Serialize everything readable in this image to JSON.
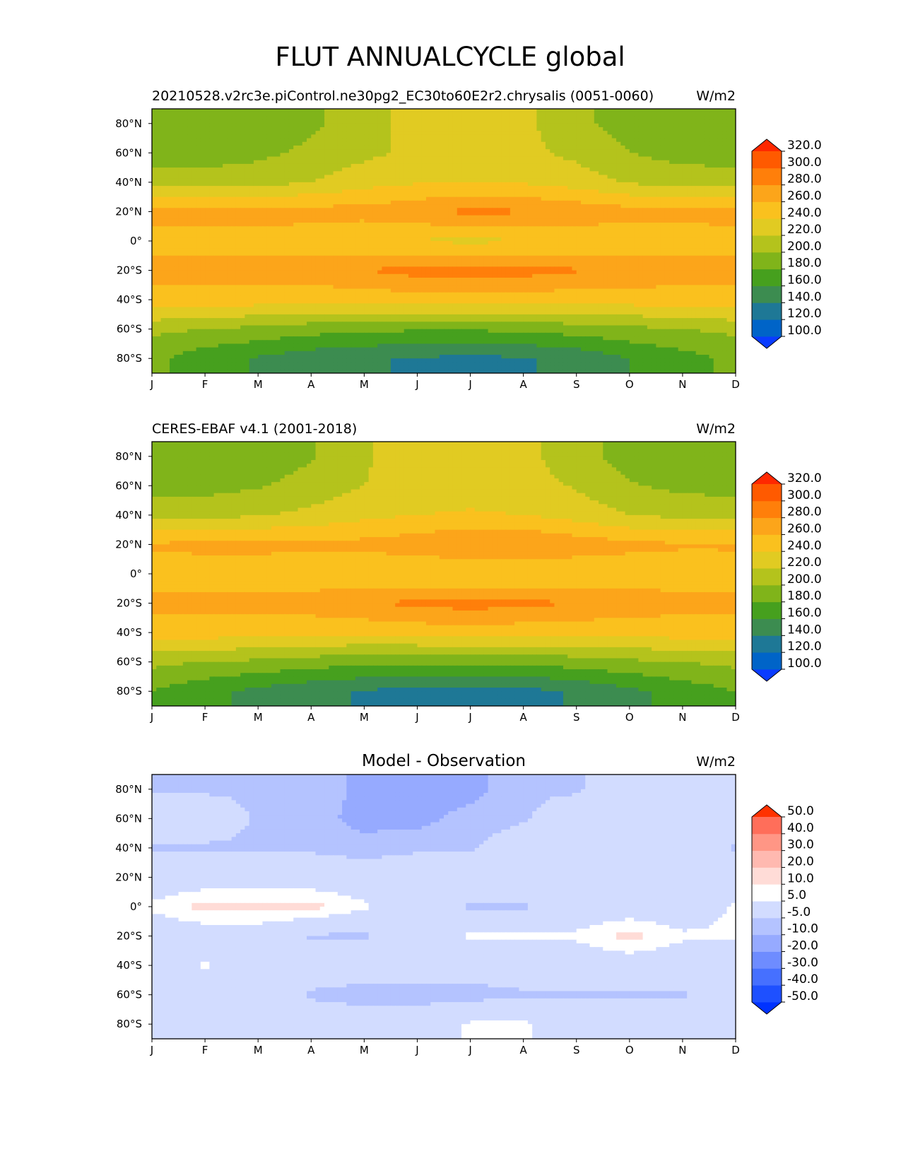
{
  "figure_title": "FLUT ANNUALCYCLE global",
  "chart_data": [
    {
      "type": "heatmap",
      "subtype": "filled-contour",
      "title": "20210528.v2rc3e.piControl.ne30pg2_EC30to60E2r2.chrysalis (0051-0060)",
      "units": "W/m2",
      "x": [
        "J",
        "F",
        "M",
        "A",
        "M",
        "J",
        "J",
        "A",
        "S",
        "O",
        "N",
        "D"
      ],
      "y": [
        "80°N",
        "60°N",
        "40°N",
        "20°N",
        "0°",
        "20°S",
        "40°S",
        "60°S",
        "80°S"
      ],
      "y_values": [
        80,
        60,
        40,
        20,
        0,
        -20,
        -40,
        -60,
        -80
      ],
      "ylim": [
        -90,
        90
      ],
      "levels": [
        100,
        120,
        140,
        160,
        180,
        200,
        220,
        240,
        260,
        280,
        300,
        320
      ],
      "level_labels": [
        "100.0",
        "120.0",
        "140.0",
        "160.0",
        "180.0",
        "200.0",
        "220.0",
        "240.0",
        "260.0",
        "280.0",
        "300.0",
        "320.0"
      ],
      "colors": [
        "#0a3cff",
        "#0064c8",
        "#1e7896",
        "#3c8c50",
        "#46a01e",
        "#80b41a",
        "#b4c31c",
        "#e1cb22",
        "#fac11e",
        "#fca51a",
        "#ff7f0a",
        "#ff5a00",
        "#ff2800"
      ],
      "values": [
        [
          180,
          180,
          185,
          195,
          215,
          225,
          230,
          225,
          205,
          190,
          182,
          180
        ],
        [
          190,
          190,
          195,
          205,
          215,
          225,
          230,
          225,
          215,
          200,
          192,
          190
        ],
        [
          210,
          210,
          212,
          220,
          232,
          238,
          240,
          238,
          230,
          218,
          212,
          210
        ],
        [
          265,
          268,
          270,
          268,
          268,
          275,
          285,
          282,
          275,
          268,
          265,
          265
        ],
        [
          255,
          252,
          250,
          248,
          242,
          238,
          236,
          238,
          242,
          248,
          252,
          255
        ],
        [
          265,
          268,
          270,
          272,
          280,
          288,
          290,
          288,
          282,
          275,
          268,
          265
        ],
        [
          255,
          252,
          250,
          248,
          248,
          250,
          252,
          250,
          248,
          250,
          252,
          255
        ],
        [
          205,
          200,
          195,
          188,
          185,
          182,
          182,
          185,
          190,
          195,
          200,
          205
        ],
        [
          185,
          168,
          158,
          148,
          142,
          138,
          136,
          138,
          145,
          160,
          172,
          185
        ]
      ]
    },
    {
      "type": "heatmap",
      "subtype": "filled-contour",
      "title": "CERES-EBAF v4.1 (2001-2018)",
      "units": "W/m2",
      "x": [
        "J",
        "F",
        "M",
        "A",
        "M",
        "J",
        "J",
        "A",
        "S",
        "O",
        "N",
        "D"
      ],
      "y": [
        "80°N",
        "60°N",
        "40°N",
        "20°N",
        "0°",
        "20°S",
        "40°S",
        "60°S",
        "80°S"
      ],
      "y_values": [
        80,
        60,
        40,
        20,
        0,
        -20,
        -40,
        -60,
        -80
      ],
      "ylim": [
        -90,
        90
      ],
      "levels": [
        100,
        120,
        140,
        160,
        180,
        200,
        220,
        240,
        260,
        280,
        300,
        320
      ],
      "level_labels": [
        "100.0",
        "120.0",
        "140.0",
        "160.0",
        "180.0",
        "200.0",
        "220.0",
        "240.0",
        "260.0",
        "280.0",
        "300.0",
        "320.0"
      ],
      "colors": [
        "#0a3cff",
        "#0064c8",
        "#1e7896",
        "#3c8c50",
        "#46a01e",
        "#80b41a",
        "#b4c31c",
        "#e1cb22",
        "#fac11e",
        "#fca51a",
        "#ff7f0a",
        "#ff5a00",
        "#ff2800"
      ],
      "values": [
        [
          180,
          180,
          188,
          198,
          218,
          228,
          232,
          226,
          208,
          192,
          184,
          180
        ],
        [
          192,
          192,
          198,
          208,
          220,
          228,
          232,
          228,
          218,
          202,
          194,
          192
        ],
        [
          215,
          215,
          218,
          225,
          235,
          240,
          242,
          240,
          232,
          220,
          215,
          215
        ],
        [
          262,
          265,
          266,
          265,
          266,
          272,
          282,
          280,
          272,
          265,
          262,
          262
        ],
        [
          252,
          250,
          248,
          246,
          242,
          240,
          238,
          240,
          244,
          248,
          250,
          252
        ],
        [
          265,
          266,
          268,
          270,
          278,
          285,
          288,
          285,
          280,
          272,
          266,
          265
        ],
        [
          252,
          250,
          248,
          246,
          245,
          248,
          250,
          248,
          246,
          248,
          250,
          252
        ],
        [
          205,
          200,
          196,
          190,
          186,
          184,
          184,
          186,
          190,
          196,
          200,
          205
        ],
        [
          180,
          165,
          155,
          145,
          138,
          134,
          130,
          134,
          142,
          155,
          168,
          180
        ]
      ]
    },
    {
      "type": "heatmap",
      "subtype": "filled-contour",
      "title": "Model - Observation",
      "units": "W/m2",
      "x": [
        "J",
        "F",
        "M",
        "A",
        "M",
        "J",
        "J",
        "A",
        "S",
        "O",
        "N",
        "D"
      ],
      "y": [
        "80°N",
        "60°N",
        "40°N",
        "20°N",
        "0°",
        "20°S",
        "40°S",
        "60°S",
        "80°S"
      ],
      "y_values": [
        80,
        60,
        40,
        20,
        0,
        -20,
        -40,
        -60,
        -80
      ],
      "ylim": [
        -90,
        90
      ],
      "levels": [
        -50,
        -40,
        -30,
        -20,
        -10,
        -5,
        5,
        10,
        20,
        30,
        40,
        50
      ],
      "level_labels": [
        "-50.0",
        "-40.0",
        "-30.0",
        "-20.0",
        "-10.0",
        "-5.0",
        "5.0",
        "10.0",
        "20.0",
        "30.0",
        "40.0",
        "50.0"
      ],
      "colors": [
        "#0032ff",
        "#1e50ff",
        "#4670ff",
        "#6e8cff",
        "#96aaff",
        "#b4c3ff",
        "#d2dcff",
        "#ffffff",
        "#ffdcd7",
        "#ffb9b0",
        "#ff9685",
        "#ff6e5a",
        "#ff3200"
      ],
      "values": [
        [
          -6,
          -6,
          -6,
          -6,
          -12,
          -12,
          -12,
          -6,
          -6,
          0,
          0,
          0
        ],
        [
          0,
          0,
          -6,
          -8,
          -12,
          -12,
          -8,
          -6,
          0,
          0,
          0,
          0
        ],
        [
          -6,
          -6,
          -6,
          -6,
          -8,
          -6,
          -6,
          0,
          0,
          0,
          0,
          -6
        ],
        [
          0,
          0,
          0,
          0,
          0,
          0,
          0,
          0,
          0,
          0,
          0,
          0
        ],
        [
          6,
          12,
          12,
          12,
          6,
          0,
          -6,
          -6,
          0,
          0,
          0,
          6
        ],
        [
          0,
          0,
          0,
          -6,
          -6,
          0,
          6,
          6,
          6,
          12,
          6,
          6
        ],
        [
          0,
          6,
          0,
          0,
          0,
          0,
          0,
          0,
          0,
          0,
          0,
          0
        ],
        [
          0,
          0,
          0,
          -6,
          -8,
          -8,
          -8,
          -6,
          -6,
          -6,
          -6,
          0
        ],
        [
          0,
          0,
          0,
          0,
          0,
          0,
          6,
          6,
          0,
          0,
          0,
          0
        ]
      ]
    }
  ]
}
